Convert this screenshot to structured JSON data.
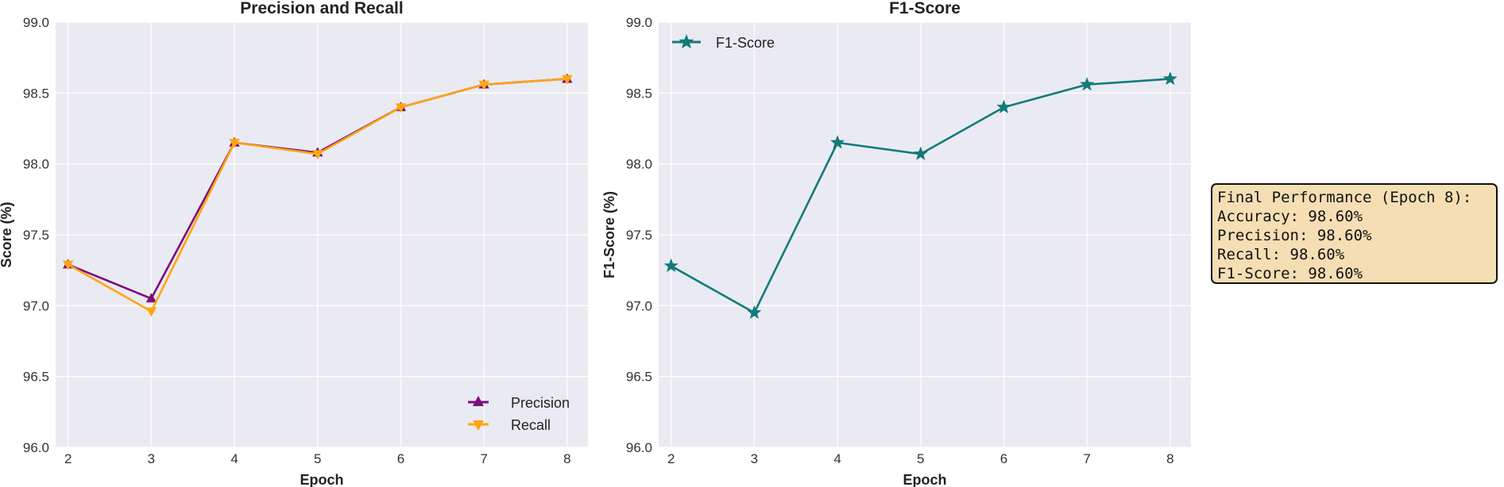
{
  "colors": {
    "precision": "#7b0f7b",
    "recall": "#ffa510",
    "f1": "#137b79",
    "panel_bg": "#eaeaf2",
    "grid": "#ffffff"
  },
  "summary_box": {
    "lines": [
      "Final Performance (Epoch 8):",
      "Accuracy: 98.60%",
      "Precision: 98.60%",
      "Recall: 98.60%",
      "F1-Score: 98.60%"
    ]
  },
  "chart_data": [
    {
      "type": "line",
      "title": "Precision and Recall",
      "xlabel": "Epoch",
      "ylabel": "Score (%)",
      "x": [
        2,
        3,
        4,
        5,
        6,
        7,
        8
      ],
      "xticks": [
        "2",
        "3",
        "4",
        "5",
        "6",
        "7",
        "8"
      ],
      "yticks": [
        "96.0",
        "96.5",
        "97.0",
        "97.5",
        "98.0",
        "98.5",
        "99.0"
      ],
      "ylim": [
        96.0,
        99.0
      ],
      "grid": true,
      "legend_position": "lower-right",
      "series": [
        {
          "name": "Precision",
          "marker": "triangle-up",
          "color": "#7b0f7b",
          "values": [
            97.29,
            97.05,
            98.15,
            98.08,
            98.4,
            98.56,
            98.6
          ]
        },
        {
          "name": "Recall",
          "marker": "triangle-down",
          "color": "#ffa510",
          "values": [
            97.29,
            96.96,
            98.15,
            98.07,
            98.4,
            98.56,
            98.6
          ]
        }
      ]
    },
    {
      "type": "line",
      "title": "F1-Score",
      "xlabel": "Epoch",
      "ylabel": "F1-Score (%)",
      "x": [
        2,
        3,
        4,
        5,
        6,
        7,
        8
      ],
      "xticks": [
        "2",
        "3",
        "4",
        "5",
        "6",
        "7",
        "8"
      ],
      "yticks": [
        "96.0",
        "96.5",
        "97.0",
        "97.5",
        "98.0",
        "98.5",
        "99.0"
      ],
      "ylim": [
        96.0,
        99.0
      ],
      "grid": true,
      "legend_position": "upper-left",
      "series": [
        {
          "name": "F1-Score",
          "marker": "star",
          "color": "#137b79",
          "values": [
            97.28,
            96.95,
            98.15,
            98.07,
            98.4,
            98.56,
            98.6
          ]
        }
      ]
    }
  ]
}
